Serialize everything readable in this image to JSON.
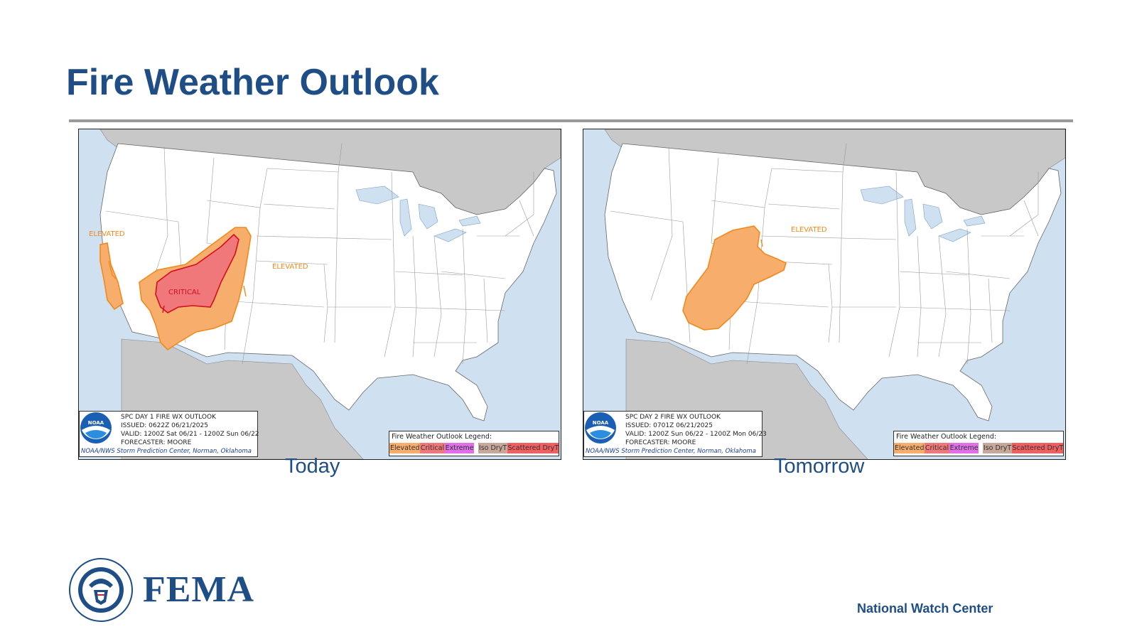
{
  "slide": {
    "title": "Fire Weather Outlook",
    "footer": "National Watch Center",
    "logo_text": "FEMA",
    "seal_icon": "dhs-seal-icon"
  },
  "colors": {
    "title": "#1f4e87",
    "rule": "#9a9a9a",
    "water": "#cfe1f1",
    "land": "#ffffff",
    "foreign_land": "#c8c8c8",
    "elevated": "#f7ad6b",
    "elevated_outline": "#f08a1c",
    "critical": "#f0787a",
    "critical_outline": "#d01020",
    "extreme": "#e070e8",
    "iso_dryt": "#c8a89a",
    "scattered_dryt": "#f06060"
  },
  "maps": [
    {
      "caption": "Today",
      "info": {
        "product": "SPC DAY 1 FIRE WX OUTLOOK",
        "issued": "ISSUED: 0622Z 06/21/2025",
        "valid": "VALID: 1200Z Sat 06/21 - 1200Z Sun 06/22",
        "forecaster": "FORECASTER: MOORE",
        "credit": "NOAA/NWS Storm Prediction Center, Norman, Oklahoma",
        "logo_text": "NOAA"
      },
      "legend": {
        "title": "Fire Weather Outlook Legend:",
        "items": [
          "Elevated",
          "Critical",
          "Extreme",
          "Iso DryT",
          "Scattered DryT"
        ]
      },
      "labels": [
        {
          "text": "ELEVATED",
          "category": "elevated"
        },
        {
          "text": "ELEVATED",
          "category": "elevated"
        },
        {
          "text": "CRITICAL",
          "category": "critical"
        }
      ]
    },
    {
      "caption": "Tomorrow",
      "info": {
        "product": "SPC DAY 2 FIRE WX OUTLOOK",
        "issued": "ISSUED: 0701Z 06/21/2025",
        "valid": "VALID: 1200Z Sun 06/22 - 1200Z Mon 06/23",
        "forecaster": "FORECASTER: MOORE",
        "credit": "NOAA/NWS Storm Prediction Center, Norman, Oklahoma",
        "logo_text": "NOAA"
      },
      "legend": {
        "title": "Fire Weather Outlook Legend:",
        "items": [
          "Elevated",
          "Critical",
          "Extreme",
          "Iso DryT",
          "Scattered DryT"
        ]
      },
      "labels": [
        {
          "text": "ELEVATED",
          "category": "elevated"
        }
      ]
    }
  ]
}
